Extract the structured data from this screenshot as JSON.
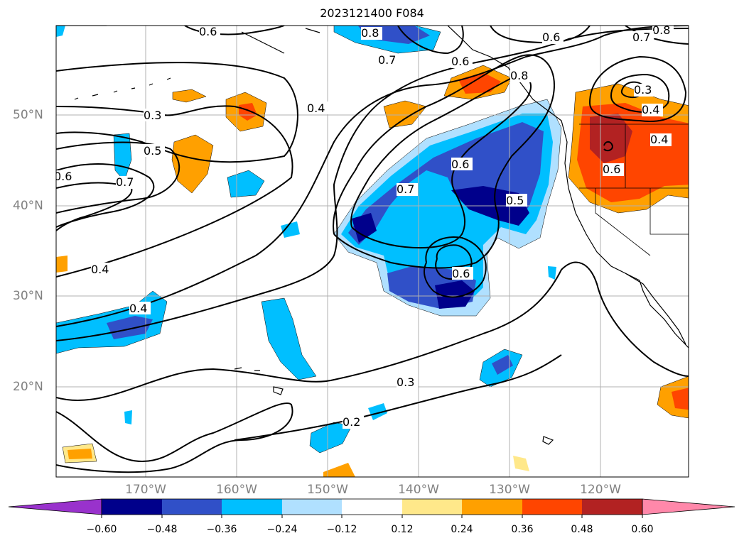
{
  "title": "2023121400 F084",
  "lat_labels": [
    "50°N",
    "40°N",
    "30°N",
    "20°N"
  ],
  "lon_labels": [
    "170°W",
    "160°W",
    "150°W",
    "140°W",
    "130°W",
    "120°W"
  ],
  "contour_labels": [
    "0.6",
    "0.8",
    "0.7",
    "0.6",
    "0.8",
    "0.6",
    "0.7",
    "0.8",
    "0.3",
    "0.4",
    "0.3",
    "0.4",
    "0.5",
    "0.6",
    "0.7",
    "0.4",
    "0.7",
    "0.6",
    "0.5",
    "0.6",
    "0.6",
    "0.4",
    "0.4",
    "0.3",
    "0.2"
  ],
  "colorbar": {
    "labels": [
      "−0.60",
      "−0.48",
      "−0.36",
      "−0.24",
      "−0.12",
      "0.12",
      "0.24",
      "0.36",
      "0.48",
      "0.60"
    ],
    "colors": [
      "#9932cc",
      "#00008b",
      "#3050c8",
      "#00bfff",
      "#b0e0ff",
      "#ffffff",
      "#ffe88a",
      "#ffa000",
      "#ff4500",
      "#b22222",
      "#ff88aa"
    ]
  }
}
